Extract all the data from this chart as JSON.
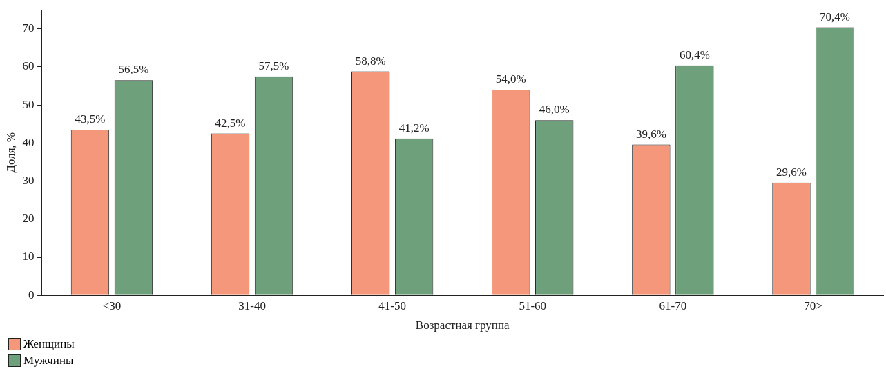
{
  "chart_data": {
    "type": "bar",
    "xlabel": "Возрастная группа",
    "ylabel": "Доля, %",
    "categories": [
      "<30",
      "31-40",
      "41-50",
      "51-60",
      "61-70",
      "70>"
    ],
    "series": [
      {
        "name": "Женщины",
        "color": "#f4977a",
        "values": [
          43.5,
          42.5,
          58.8,
          54.0,
          39.6,
          29.6
        ],
        "value_labels": [
          "43,5%",
          "42,5%",
          "58,8%",
          "54,0%",
          "39,6%",
          "29,6%"
        ]
      },
      {
        "name": "Мужчины",
        "color": "#6fa07c",
        "values": [
          56.5,
          57.5,
          41.2,
          46.0,
          60.4,
          70.4
        ],
        "value_labels": [
          "56,5%",
          "57,5%",
          "41,2%",
          "46,0%",
          "60,4%",
          "70,4%"
        ]
      }
    ],
    "ylim": [
      0,
      75
    ],
    "yticks": [
      0,
      10,
      20,
      30,
      40,
      50,
      60,
      70
    ],
    "grid": false,
    "legend": "bottom left"
  }
}
